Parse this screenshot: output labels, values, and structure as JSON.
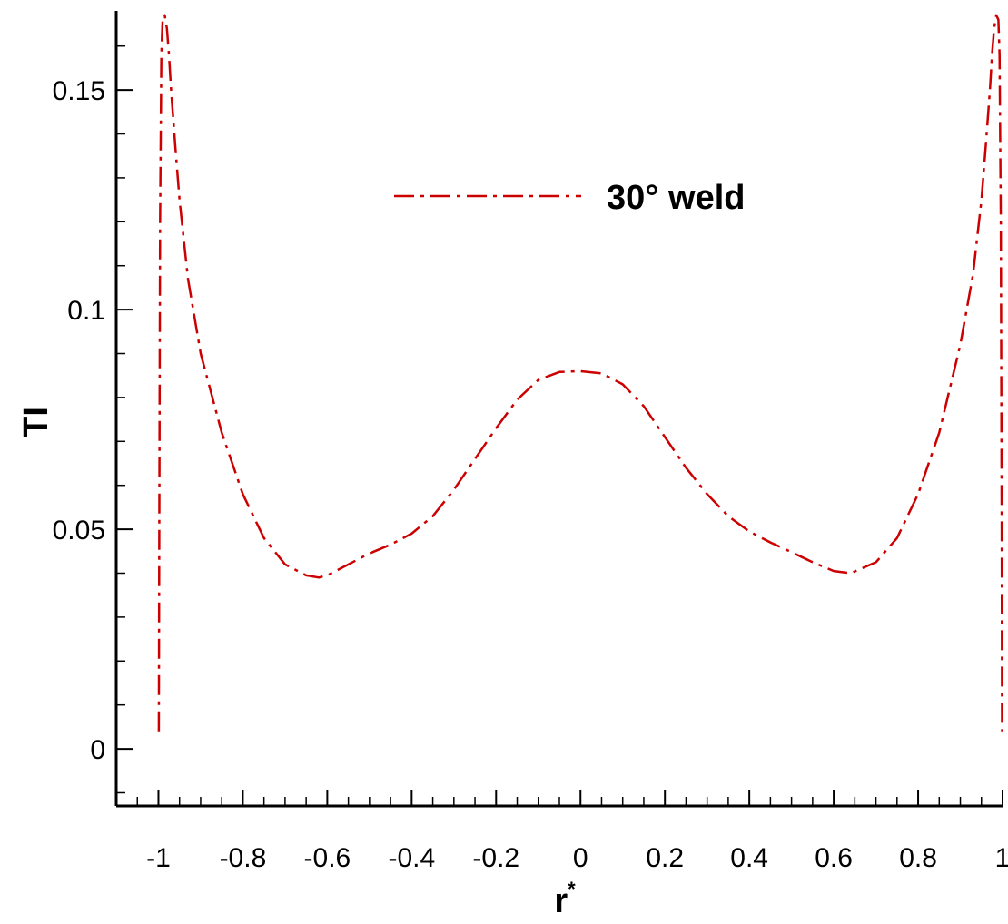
{
  "chart_data": {
    "type": "line",
    "title": "",
    "xlabel": "r",
    "xlabel_sup": "*",
    "ylabel": "TI",
    "xlim": [
      -1.1,
      1.0
    ],
    "ylim": [
      -0.013,
      0.168
    ],
    "grid": false,
    "legend_placement": "top-center",
    "x_ticks": [
      {
        "value": -1,
        "label": "-1"
      },
      {
        "value": -0.8,
        "label": "-0.8"
      },
      {
        "value": -0.6,
        "label": "-0.6"
      },
      {
        "value": -0.4,
        "label": "-0.4"
      },
      {
        "value": -0.2,
        "label": "-0.2"
      },
      {
        "value": 0,
        "label": "0"
      },
      {
        "value": 0.2,
        "label": "0.2"
      },
      {
        "value": 0.4,
        "label": "0.4"
      },
      {
        "value": 0.6,
        "label": "0.6"
      },
      {
        "value": 0.8,
        "label": "0.8"
      },
      {
        "value": 1,
        "label": "1"
      }
    ],
    "y_ticks": [
      {
        "value": 0,
        "label": "0"
      },
      {
        "value": 0.05,
        "label": "0.05"
      },
      {
        "value": 0.1,
        "label": "0.1"
      },
      {
        "value": 0.15,
        "label": "0.15"
      }
    ],
    "series": [
      {
        "name": "30° weld",
        "color": "#cc0000",
        "line_style": "dash-dot",
        "x": [
          -0.999,
          -0.998,
          -0.996,
          -0.993,
          -0.99,
          -0.985,
          -0.98,
          -0.975,
          -0.97,
          -0.96,
          -0.95,
          -0.93,
          -0.9,
          -0.85,
          -0.8,
          -0.75,
          -0.7,
          -0.65,
          -0.62,
          -0.6,
          -0.55,
          -0.5,
          -0.45,
          -0.4,
          -0.35,
          -0.3,
          -0.25,
          -0.2,
          -0.15,
          -0.1,
          -0.05,
          0,
          0.05,
          0.1,
          0.15,
          0.2,
          0.25,
          0.3,
          0.35,
          0.4,
          0.45,
          0.5,
          0.55,
          0.6,
          0.64,
          0.7,
          0.75,
          0.8,
          0.85,
          0.9,
          0.93,
          0.95,
          0.96,
          0.97,
          0.975,
          0.98,
          0.985,
          0.99,
          0.993,
          0.996,
          0.998,
          0.999
        ],
        "y": [
          0.004,
          0.05,
          0.12,
          0.158,
          0.166,
          0.167,
          0.164,
          0.158,
          0.15,
          0.137,
          0.125,
          0.107,
          0.09,
          0.072,
          0.058,
          0.048,
          0.042,
          0.0395,
          0.039,
          0.0395,
          0.042,
          0.0445,
          0.0465,
          0.049,
          0.053,
          0.059,
          0.066,
          0.073,
          0.0795,
          0.084,
          0.0858,
          0.086,
          0.0855,
          0.083,
          0.078,
          0.071,
          0.064,
          0.058,
          0.053,
          0.0495,
          0.047,
          0.0448,
          0.0425,
          0.0405,
          0.04,
          0.0425,
          0.048,
          0.058,
          0.072,
          0.092,
          0.108,
          0.125,
          0.137,
          0.15,
          0.158,
          0.164,
          0.167,
          0.166,
          0.158,
          0.12,
          0.05,
          0.004
        ]
      }
    ]
  }
}
